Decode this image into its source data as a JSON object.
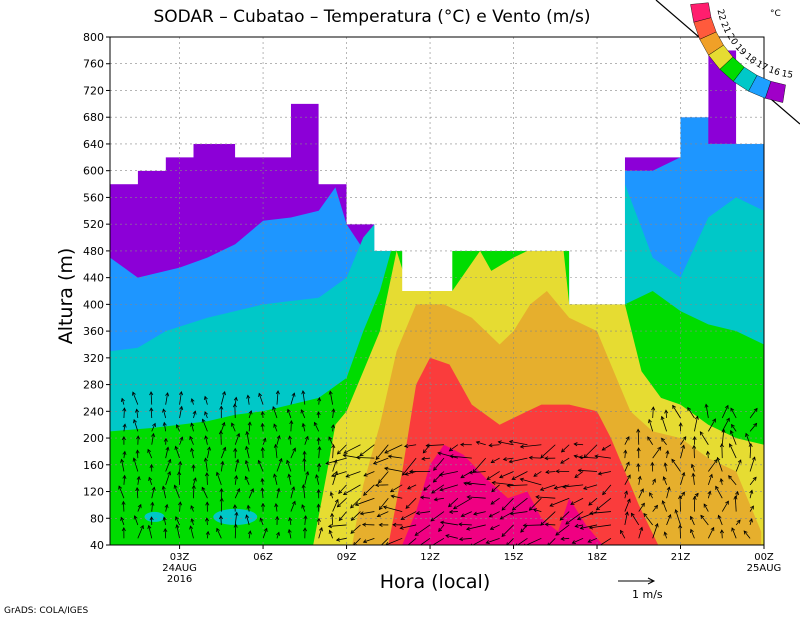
{
  "chart_data": {
    "type": "heatmap",
    "title": "SODAR – Cubatao – Temperatura (°C) e Vento (m/s)",
    "xlabel": "Hora (local)",
    "ylabel": "Altura (m)",
    "ylim": [
      40,
      800
    ],
    "y_ticks": [
      40,
      80,
      120,
      160,
      200,
      240,
      280,
      320,
      360,
      400,
      440,
      480,
      520,
      560,
      600,
      640,
      680,
      720,
      760,
      800
    ],
    "x_ticks": [
      {
        "hour": 3,
        "label": "03Z",
        "sub": [
          "24AUG",
          "2016"
        ]
      },
      {
        "hour": 6,
        "label": "06Z",
        "sub": []
      },
      {
        "hour": 9,
        "label": "09Z",
        "sub": []
      },
      {
        "hour": 12,
        "label": "12Z",
        "sub": []
      },
      {
        "hour": 15,
        "label": "15Z",
        "sub": []
      },
      {
        "hour": 18,
        "label": "18Z",
        "sub": []
      },
      {
        "hour": 21,
        "label": "21Z",
        "sub": []
      },
      {
        "hour": 24,
        "label": "00Z",
        "sub": [
          "25AUG"
        ]
      }
    ],
    "xlim": [
      0.5,
      24
    ],
    "grid": true,
    "colorbar": {
      "unit": "°C",
      "levels": [
        22,
        21,
        20,
        19,
        18,
        17,
        16,
        15
      ],
      "colors": [
        "#ff1e6e",
        "#ff5a3c",
        "#f0a028",
        "#e6dc32",
        "#00dc00",
        "#00c8c8",
        "#1ea0ff",
        "#a000c8"
      ]
    },
    "fill_colors": {
      "purple": "#8c00d7",
      "blue": "#1e96ff",
      "cyan": "#00c8c8",
      "green": "#00dc00",
      "yellow": "#e6dc32",
      "orange": "#e6af2d",
      "red": "#fa3c3c",
      "magenta": "#f00082"
    },
    "data_top": [
      {
        "h": 0.5,
        "top": 580
      },
      {
        "h": 1.5,
        "top": 600
      },
      {
        "h": 2.5,
        "top": 620
      },
      {
        "h": 3.5,
        "top": 640
      },
      {
        "h": 5.0,
        "top": 620
      },
      {
        "h": 7.0,
        "top": 700
      },
      {
        "h": 8.5,
        "top": 580
      },
      {
        "h": 9.5,
        "top": 520
      },
      {
        "h": 10.5,
        "top": 480
      },
      {
        "h": 11.5,
        "top": 420
      },
      {
        "h": 12.5,
        "top": 420
      },
      {
        "h": 13.5,
        "top": 480
      },
      {
        "h": 15.0,
        "top": 480
      },
      {
        "h": 16.5,
        "top": 480
      },
      {
        "h": 17.5,
        "top": 400
      },
      {
        "h": 18.5,
        "top": 400
      },
      {
        "h": 19.5,
        "top": 620
      },
      {
        "h": 21.5,
        "top": 680
      },
      {
        "h": 23.0,
        "top": 780
      },
      {
        "h": 23.8,
        "top": 640
      }
    ],
    "wind_scale": {
      "label": "1  m/s"
    }
  },
  "footer": {
    "credit": "GrADS: COLA/IGES"
  }
}
